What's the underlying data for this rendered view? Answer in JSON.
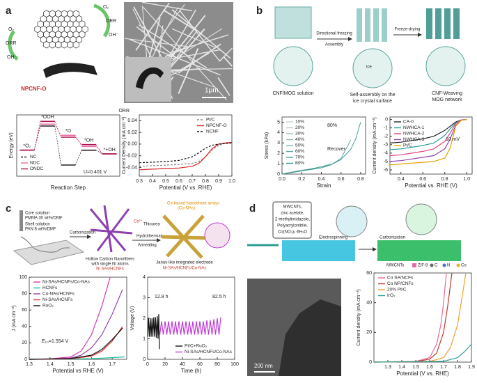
{
  "figure": {
    "panel_labels": [
      "a",
      "b",
      "c",
      "d"
    ],
    "a": {
      "o2_right": "O₂",
      "oer": "OER",
      "oh_right": "OH⁻",
      "o2_left": "O₂",
      "orr": "ORR",
      "oh_left": "OH⁻",
      "material": "NPCNF-O",
      "scale": "1μm"
    },
    "b": {
      "solution": "CNF/MOG solution",
      "freezing": "Directional freezing",
      "assembly": "Assembly",
      "drying": "Freeze-drying",
      "self_assembly": [
        "Self-assembly on the",
        "ice crystal surface"
      ],
      "network": [
        "CNF-Weaving",
        "MOG network"
      ],
      "ice": "ice"
    },
    "c": {
      "core": [
        "Core solution",
        "PMMA 30 wt%/DMF"
      ],
      "shell": [
        "Shell solution",
        "PAN 8 wt%/DMF"
      ],
      "carbonization": "Carbonization",
      "co": "Co²⁺",
      "thiourea": "Thiourea",
      "hydrothermal": "Hydrothermal",
      "annealing": "Annealing",
      "arrays": [
        "Co-based Nanosheet arrays",
        "(Co-NAs)"
      ],
      "hollow": [
        "Hollow Carbon Nanofibers",
        "with single Ni atoms",
        "Ni SAs/HCNFs"
      ],
      "janus": [
        "Janus-like integrated electrode",
        "Ni-SAs/HCNFs/Co-NAs"
      ]
    },
    "d": {
      "precursors": [
        "MWCNTs,",
        "zinc acetate,",
        "2-methylimidazole,",
        "Polyacrylonitrile,",
        "Co(NO₃)₂·6H₂O"
      ],
      "electrospinning": "Electrospinning",
      "carbonization": "Carbonization",
      "legend": [
        "MWCNTs",
        "ZIF-8",
        "C",
        "N",
        "Co"
      ],
      "scale": "200 nm"
    }
  },
  "chart_data": [
    {
      "type": "step",
      "title": "ORR",
      "ylabel": "Energy (eV)",
      "xlabel": "Reaction Step",
      "categories": [
        "*O₂",
        "*OOH",
        "*O",
        "*OH",
        "*+OH"
      ],
      "ylim": [
        -1.2,
        2.1
      ],
      "legend": "lower left",
      "annotations": [
        "U=0.401 V"
      ],
      "series": [
        {
          "name": "NC",
          "color": "#222222",
          "dash": true,
          "values": [
            0.2,
            1.5,
            -0.6,
            0.2,
            0
          ]
        },
        {
          "name": "NDC",
          "color": "#e86aa6",
          "dash": false,
          "values": [
            0.2,
            1.6,
            1.0,
            0.4,
            0
          ]
        },
        {
          "name": "ONDC",
          "color": "#b0124f",
          "dash": false,
          "values": [
            0.2,
            1.75,
            0.9,
            0.5,
            0
          ]
        }
      ]
    },
    {
      "type": "line",
      "ylabel": "Current Density (mA cm⁻²)",
      "xlabel": "Potential (V vs. RHE)",
      "xlim": [
        0.3,
        1.0
      ],
      "xticks": [
        0.3,
        0.4,
        0.5,
        0.6,
        0.7,
        0.8,
        0.9,
        {
          "value": 1,
          "label": "1.0"
        }
      ],
      "ylim": [
        -0.055,
        0.05
      ],
      "yticks": [
        0.04,
        0.02,
        {
          "value": 0,
          "label": "0.00"
        },
        -0.02,
        -0.04
      ],
      "legend": "upper right",
      "x": [
        0.3,
        0.4,
        0.5,
        0.6,
        0.7,
        0.75,
        0.8,
        0.85,
        0.9,
        0.95,
        1.0
      ],
      "series": [
        {
          "name": "Pt/C",
          "color": "#888888",
          "dash": true,
          "values": [
            -0.038,
            -0.037,
            -0.036,
            -0.035,
            -0.033,
            -0.03,
            -0.022,
            -0.01,
            -0.002,
            0.001,
            0.002
          ]
        },
        {
          "name": "NPCNF-O",
          "color": "#d62728",
          "dash": false,
          "values": [
            -0.044,
            -0.043,
            -0.042,
            -0.041,
            -0.038,
            -0.033,
            -0.022,
            -0.008,
            0,
            0.002,
            0.003
          ]
        },
        {
          "name": "NCNF",
          "color": "#111111",
          "dash": true,
          "values": [
            -0.032,
            -0.031,
            -0.03,
            -0.028,
            -0.022,
            -0.015,
            -0.007,
            -0.002,
            0,
            0.001,
            0.002
          ]
        }
      ]
    },
    {
      "type": "line",
      "ylabel": "Stress (kPa)",
      "xlabel": "Strain",
      "xlim": [
        0,
        0.85
      ],
      "xticks": [
        {
          "value": 0,
          "label": "0.0"
        },
        0.2,
        0.4,
        0.6,
        0.8
      ],
      "ylim": [
        0,
        5.5
      ],
      "yticks": [
        0,
        1,
        2,
        3,
        4,
        5
      ],
      "legend": "upper left",
      "annotations": [
        "80%",
        "Recover"
      ],
      "series": [
        {
          "name": "10%",
          "color": "#c9d6d5",
          "x": [
            0,
            0.05,
            0.1
          ],
          "values": [
            0,
            0.1,
            0.2
          ]
        },
        {
          "name": "20%",
          "color": "#b5cccb",
          "x": [
            0,
            0.1,
            0.2
          ],
          "values": [
            0,
            0.2,
            0.35
          ]
        },
        {
          "name": "30%",
          "color": "#a0c3c1",
          "x": [
            0,
            0.15,
            0.3
          ],
          "values": [
            0,
            0.3,
            0.5
          ]
        },
        {
          "name": "40%",
          "color": "#8bbab7",
          "x": [
            0,
            0.2,
            0.4
          ],
          "values": [
            0,
            0.35,
            0.7
          ]
        },
        {
          "name": "50%",
          "color": "#76b1ad",
          "x": [
            0,
            0.25,
            0.4,
            0.5
          ],
          "values": [
            0,
            0.4,
            0.7,
            1.0
          ]
        },
        {
          "name": "60%",
          "color": "#61a8a3",
          "x": [
            0,
            0.3,
            0.5,
            0.6
          ],
          "values": [
            0,
            0.5,
            0.9,
            1.5
          ]
        },
        {
          "name": "70%",
          "color": "#4c9f99",
          "x": [
            0,
            0.3,
            0.5,
            0.6,
            0.7
          ],
          "values": [
            0,
            0.5,
            0.9,
            1.5,
            3.3
          ]
        },
        {
          "name": "80%",
          "color": "#37968f",
          "x": [
            0,
            0.2,
            0.4,
            0.5,
            0.6,
            0.7,
            0.75,
            0.8
          ],
          "values": [
            0,
            0.3,
            0.6,
            0.9,
            1.4,
            2.4,
            3.4,
            5.0
          ]
        }
      ]
    },
    {
      "type": "line",
      "ylabel": "Current density (mA cm⁻²)",
      "xlabel": "Potential vs. RHE (V)",
      "xlim": [
        0.3,
        1.05
      ],
      "xticks": [
        0.4,
        0.6,
        0.8,
        {
          "value": 1,
          "label": "1.0"
        }
      ],
      "ylim": [
        -6.5,
        0.3
      ],
      "yticks": [
        0,
        -1,
        -2,
        -3,
        -4,
        -5,
        -6
      ],
      "legend": "upper left",
      "annotations": [
        "10 mV"
      ],
      "x": [
        0.3,
        0.4,
        0.5,
        0.6,
        0.7,
        0.8,
        0.85,
        0.9,
        0.95,
        1.0
      ],
      "series": [
        {
          "name": "CA-0",
          "color": "#222222",
          "values": [
            -2.8,
            -2.7,
            -2.5,
            -2.3,
            -2.0,
            -1.3,
            -0.8,
            -0.3,
            -0.05,
            0
          ]
        },
        {
          "name": "NWHCA-1",
          "color": "#2aa198",
          "values": [
            -3.6,
            -3.5,
            -3.3,
            -3.1,
            -2.8,
            -1.9,
            -1.1,
            -0.4,
            -0.05,
            0
          ]
        },
        {
          "name": "NWHCA-2",
          "color": "#e0457b",
          "values": [
            -4.3,
            -4.2,
            -4.0,
            -3.8,
            -3.5,
            -2.6,
            -1.6,
            -0.5,
            -0.05,
            0
          ]
        },
        {
          "name": "NWHCA-3",
          "color": "#8e44ad",
          "values": [
            -5.0,
            -4.9,
            -4.7,
            -4.5,
            -4.3,
            -3.5,
            -2.3,
            -0.7,
            -0.1,
            0
          ]
        },
        {
          "name": "Pt/C",
          "color": "#e69f00",
          "values": [
            -5.4,
            -5.3,
            -5.2,
            -5.1,
            -5.0,
            -4.6,
            -3.4,
            -0.8,
            -0.1,
            0
          ]
        }
      ]
    },
    {
      "type": "line",
      "ylabel": "J (mA cm⁻²)",
      "xlabel": "Potential vs RHE (V)",
      "xlim": [
        1.3,
        1.77
      ],
      "xticks": [
        1.3,
        1.4,
        1.5,
        1.6,
        1.7
      ],
      "ylim": [
        0,
        100
      ],
      "yticks": [
        0,
        20,
        40,
        60,
        80,
        100
      ],
      "legend": "upper left",
      "annotations": [
        "E₁₀=1.554 V"
      ],
      "series": [
        {
          "name": "Ni-SAs/HCNFs/Co-NAs",
          "color": "#d63ab6",
          "x": [
            1.3,
            1.4,
            1.5,
            1.55,
            1.6,
            1.65,
            1.69
          ],
          "values": [
            0,
            0.5,
            3,
            10,
            30,
            65,
            100
          ]
        },
        {
          "name": "HCNFs",
          "color": "#1abc9c",
          "x": [
            1.3,
            1.5,
            1.6,
            1.7,
            1.76
          ],
          "values": [
            0,
            0.3,
            0.8,
            2,
            3
          ]
        },
        {
          "name": "Co-NAs/HCNFs",
          "color": "#8e44ad",
          "x": [
            1.3,
            1.4,
            1.5,
            1.55,
            1.6,
            1.65,
            1.7,
            1.75
          ],
          "values": [
            0,
            0.3,
            1.5,
            5,
            14,
            30,
            55,
            85
          ]
        },
        {
          "name": "Ni-SAs/HCNFs",
          "color": "#e03030",
          "x": [
            1.3,
            1.5,
            1.6,
            1.65,
            1.7,
            1.75
          ],
          "values": [
            0,
            0.5,
            4,
            10,
            22,
            40
          ]
        },
        {
          "name": "RuO₂",
          "color": "#111111",
          "x": [
            1.3,
            1.5,
            1.6,
            1.65,
            1.7,
            1.75
          ],
          "values": [
            0,
            1,
            5,
            12,
            24,
            38
          ]
        }
      ]
    },
    {
      "type": "line",
      "ylabel": "Voltage (V)",
      "xlabel": "Time (h)",
      "xlim": [
        0,
        100
      ],
      "xticks": [
        0,
        20,
        40,
        60,
        80,
        100
      ],
      "ylim": [
        0,
        4
      ],
      "yticks": [
        0,
        1,
        2,
        3,
        4
      ],
      "legend": "lower right",
      "annotations": [
        "12.8 h",
        "82.5 h"
      ],
      "series": [
        {
          "name": "Pt/C+RuO₂",
          "color": "#111111",
          "x": [
            0,
            1,
            2,
            3,
            4,
            5,
            6,
            7,
            8,
            9,
            10,
            11,
            12,
            12.8,
            13.5
          ],
          "values": [
            1.1,
            2.0,
            1.1,
            2.0,
            1.1,
            2.0,
            1.1,
            2.05,
            1.1,
            2.05,
            1.05,
            2.1,
            1.0,
            2.2,
            0.5
          ]
        },
        {
          "name": "Ni-SAs/HCNFs/Co-NAs",
          "color": "#c03ad6",
          "x": [
            14,
            16,
            18,
            20,
            22,
            24,
            26,
            28,
            30,
            32,
            34,
            36,
            38,
            40,
            42,
            44,
            46,
            48,
            50,
            52,
            54,
            56,
            58,
            60,
            62,
            64,
            66,
            68,
            70,
            72,
            74,
            76,
            78,
            80,
            82,
            84
          ],
          "values": [
            1.2,
            1.85,
            1.2,
            1.85,
            1.2,
            1.85,
            1.2,
            1.85,
            1.2,
            1.85,
            1.2,
            1.85,
            1.2,
            1.85,
            1.2,
            1.85,
            1.2,
            1.85,
            1.2,
            1.85,
            1.2,
            1.85,
            1.2,
            1.85,
            1.2,
            1.85,
            1.2,
            1.9,
            1.2,
            1.9,
            1.2,
            1.95,
            1.2,
            2.0,
            1.2,
            2.05
          ]
        }
      ]
    },
    {
      "type": "line",
      "ylabel": "Current density (mA cm⁻²)",
      "xlabel": "Potential (V vs. RHE)",
      "xlim": [
        1.2,
        1.9
      ],
      "xticks": [
        1.3,
        1.4,
        1.5,
        1.6,
        1.7,
        1.8,
        1.9
      ],
      "ylim": [
        0,
        60
      ],
      "yticks": [
        0,
        20,
        40,
        60
      ],
      "legend": "upper left",
      "series": [
        {
          "name": "Co SA/NCFs",
          "color": "#e86a9a",
          "x": [
            1.2,
            1.5,
            1.6,
            1.65,
            1.68,
            1.7,
            1.72
          ],
          "values": [
            0,
            0.5,
            3,
            12,
            25,
            40,
            60
          ]
        },
        {
          "name": "Co NP/CNFs",
          "color": "#c0392b",
          "x": [
            1.2,
            1.5,
            1.6,
            1.65,
            1.7,
            1.73,
            1.76
          ],
          "values": [
            0,
            0.3,
            2,
            6,
            20,
            38,
            60
          ]
        },
        {
          "name": "20% Pt/C",
          "color": "#f0a030",
          "x": [
            1.2,
            1.6,
            1.7,
            1.75,
            1.8,
            1.83,
            1.86
          ],
          "values": [
            0,
            0.5,
            3,
            10,
            25,
            42,
            60
          ]
        },
        {
          "name": "IrO₂",
          "color": "#2aa198",
          "x": [
            1.2,
            1.7,
            1.8,
            1.85,
            1.9
          ],
          "values": [
            0,
            0.5,
            3,
            7,
            12
          ]
        }
      ]
    }
  ]
}
